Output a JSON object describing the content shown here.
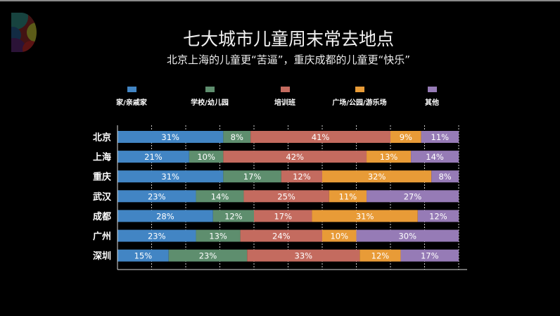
{
  "colors": {
    "background": "#000000",
    "series": [
      "#4285c4",
      "#5e8e6e",
      "#c46b5f",
      "#e89b37",
      "#967bb6"
    ]
  },
  "chart_data": {
    "type": "bar",
    "orientation": "horizontal",
    "stacked": true,
    "title": "七大城市儿童周末常去地点",
    "subtitle": "北京上海的儿童更“苦逼”，重庆成都的儿童更“快乐”",
    "categories": [
      "北京",
      "上海",
      "重庆",
      "武汉",
      "成都",
      "广州",
      "深圳"
    ],
    "series": [
      {
        "name": "家/亲戚家",
        "values": [
          31,
          21,
          31,
          23,
          28,
          23,
          15
        ]
      },
      {
        "name": "学校/幼儿园",
        "values": [
          8,
          10,
          17,
          14,
          12,
          13,
          23
        ]
      },
      {
        "name": "培训班",
        "values": [
          41,
          42,
          12,
          25,
          17,
          24,
          33
        ]
      },
      {
        "name": "广场/公园/游乐场",
        "values": [
          9,
          13,
          32,
          11,
          31,
          10,
          12
        ]
      },
      {
        "name": "其他",
        "values": [
          11,
          14,
          8,
          27,
          12,
          30,
          17
        ]
      }
    ],
    "value_format": "percent",
    "xlim": [
      0,
      100
    ],
    "grid": "vertical dotted, every 10%",
    "legend": "top"
  }
}
